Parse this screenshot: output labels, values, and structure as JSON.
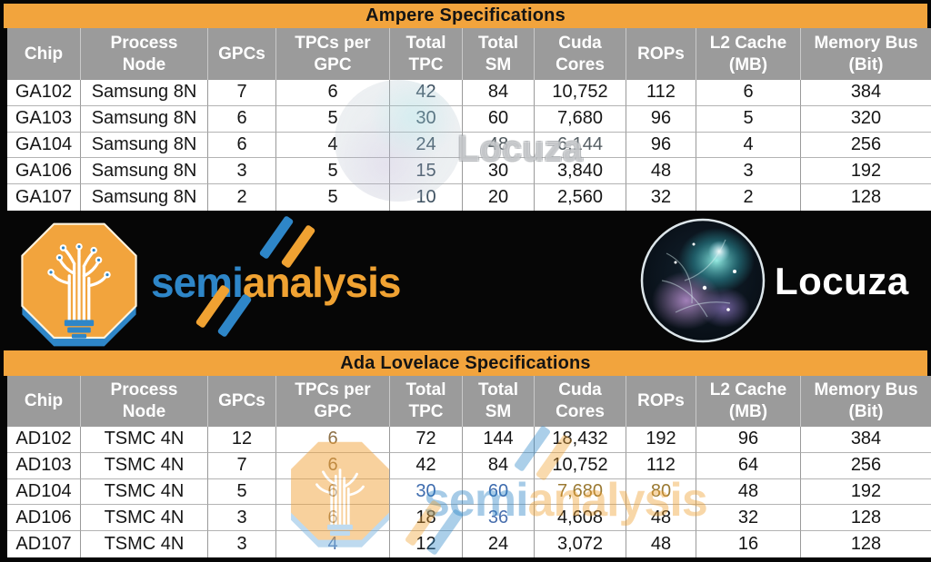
{
  "colors": {
    "title_bar": "#F2A43D",
    "header_bg": "#9B9B9B",
    "header_text": "#FFFFFF",
    "cell_bg": "#FFFFFF",
    "cell_text": "#161616",
    "band_bg": "#060606",
    "semi_blue": "#2E86C8",
    "semi_orange": "#F0A232"
  },
  "ampere_table": {
    "title": "Ampere Specifications",
    "columns": [
      "Chip",
      "Process Node",
      "GPCs",
      "TPCs per GPC",
      "Total TPC",
      "Total SM",
      "Cuda Cores",
      "ROPs",
      "L2 Cache (MB)",
      "Memory Bus (Bit)"
    ],
    "rows": [
      [
        "GA102",
        "Samsung 8N",
        "7",
        "6",
        "42",
        "84",
        "10,752",
        "112",
        "6",
        "384"
      ],
      [
        "GA103",
        "Samsung 8N",
        "6",
        "5",
        "30",
        "60",
        "7,680",
        "96",
        "5",
        "320"
      ],
      [
        "GA104",
        "Samsung 8N",
        "6",
        "4",
        "24",
        "48",
        "6,144",
        "96",
        "4",
        "256"
      ],
      [
        "GA106",
        "Samsung 8N",
        "3",
        "5",
        "15",
        "30",
        "3,840",
        "48",
        "3",
        "192"
      ],
      [
        "GA107",
        "Samsung 8N",
        "2",
        "5",
        "10",
        "20",
        "2,560",
        "32",
        "2",
        "128"
      ]
    ],
    "tints": [
      {
        "r": 0,
        "c": 4,
        "color": "#3D5060"
      },
      {
        "r": 1,
        "c": 4,
        "color": "#3D5060"
      },
      {
        "r": 2,
        "c": 4,
        "color": "#3D5060"
      },
      {
        "r": 3,
        "c": 4,
        "color": "#3D5060"
      },
      {
        "r": 4,
        "c": 4,
        "color": "#3D5060"
      },
      {
        "r": 2,
        "c": 5,
        "color": "#4E575C"
      },
      {
        "r": 2,
        "c": 6,
        "color": "#555E63"
      }
    ]
  },
  "ada_table": {
    "title": "Ada Lovelace Specifications",
    "columns": [
      "Chip",
      "Process Node",
      "GPCs",
      "TPCs per GPC",
      "Total TPC",
      "Total SM",
      "Cuda Cores",
      "ROPs",
      "L2 Cache (MB)",
      "Memory Bus (Bit)"
    ],
    "rows": [
      [
        "AD102",
        "TSMC 4N",
        "12",
        "6",
        "72",
        "144",
        "18,432",
        "192",
        "96",
        "384"
      ],
      [
        "AD103",
        "TSMC 4N",
        "7",
        "6",
        "42",
        "84",
        "10,752",
        "112",
        "64",
        "256"
      ],
      [
        "AD104",
        "TSMC 4N",
        "5",
        "6",
        "30",
        "60",
        "7,680",
        "80",
        "48",
        "192"
      ],
      [
        "AD106",
        "TSMC 4N",
        "3",
        "6",
        "18",
        "36",
        "4,608",
        "48",
        "32",
        "128"
      ],
      [
        "AD107",
        "TSMC 4N",
        "3",
        "4",
        "12",
        "24",
        "3,072",
        "48",
        "16",
        "128"
      ]
    ],
    "tints": [
      {
        "r": 0,
        "c": 3,
        "color": "#8E7147"
      },
      {
        "r": 1,
        "c": 3,
        "color": "#8E7147"
      },
      {
        "r": 2,
        "c": 3,
        "color": "#8E7147"
      },
      {
        "r": 3,
        "c": 3,
        "color": "#8E7147"
      },
      {
        "r": 4,
        "c": 3,
        "color": "#4A6FA8"
      },
      {
        "r": 2,
        "c": 4,
        "color": "#3E6CAE"
      },
      {
        "r": 2,
        "c": 5,
        "color": "#3E6CAE"
      },
      {
        "r": 2,
        "c": 6,
        "color": "#9B7A33"
      },
      {
        "r": 2,
        "c": 7,
        "color": "#9B7A33"
      },
      {
        "r": 3,
        "c": 5,
        "color": "#4A70AE"
      }
    ]
  },
  "branding": {
    "semianalysis_part1": "semi",
    "semianalysis_part2": "analysis",
    "locuza_label": "Locuza"
  },
  "watermarks": {
    "upper_text": "Locuza",
    "lower_part1": "semi",
    "lower_part2": "analysis"
  }
}
